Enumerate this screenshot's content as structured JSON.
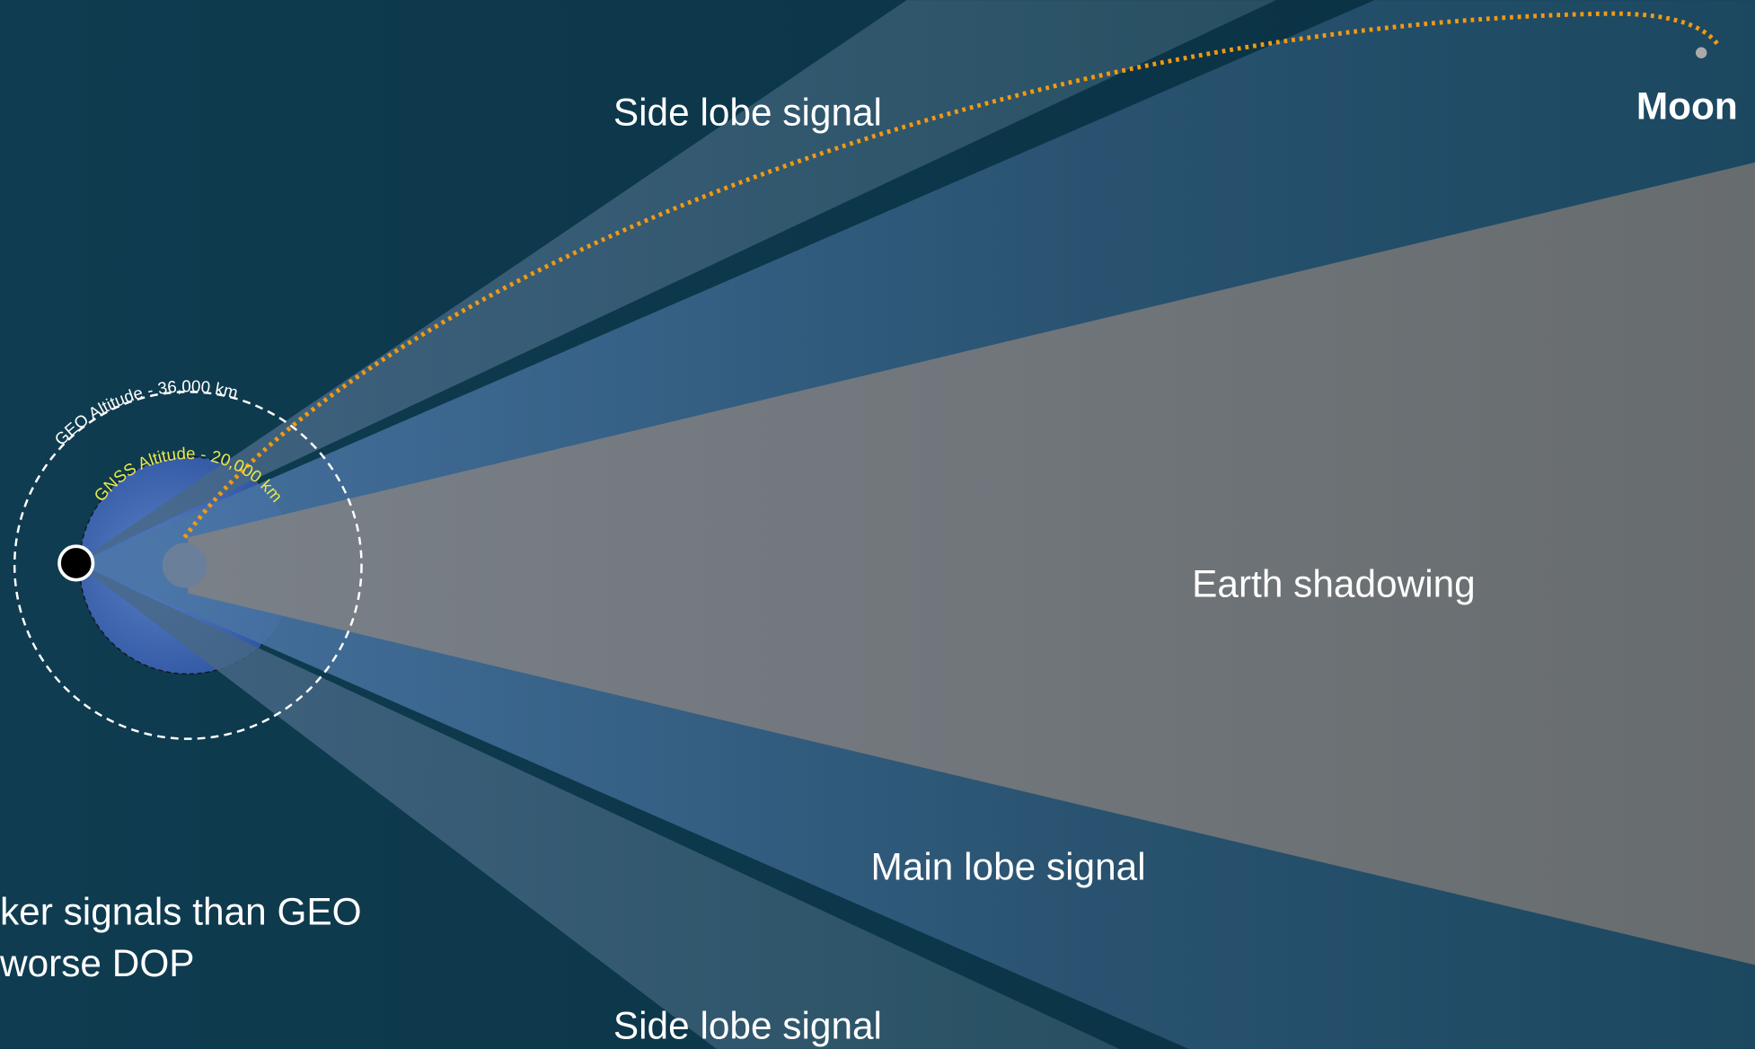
{
  "labels": {
    "side_lobe_top": "Side lobe signal",
    "moon": "Moon",
    "geo_altitude": "GEO Altitude - 36,000 km",
    "gnss_altitude": "GNSS Altitude - 20,000 km",
    "earth_shadowing": "Earth shadowing",
    "main_lobe": "Main lobe signal",
    "note_line1": "ker signals than GEO",
    "note_line2": "worse DOP",
    "side_lobe_bottom": "Side lobe signal"
  }
}
